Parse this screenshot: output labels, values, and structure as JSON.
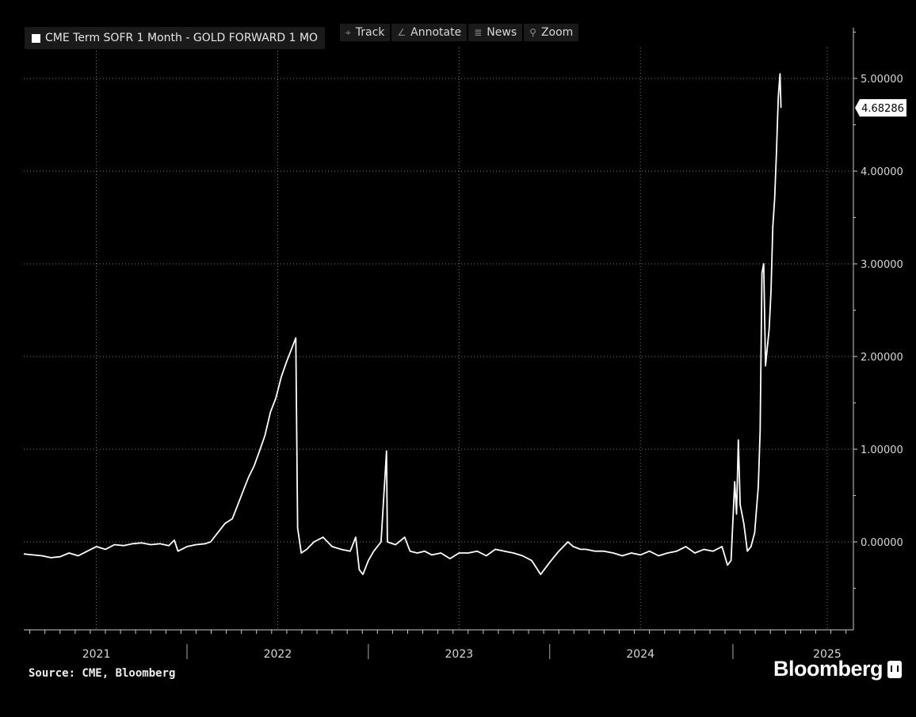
{
  "legend": {
    "label": "CME Term SOFR 1 Month - GOLD FORWARD 1 MO"
  },
  "toolbar": [
    {
      "icon": "track-icon",
      "glyph": "⌖",
      "label": "Track"
    },
    {
      "icon": "annotate-icon",
      "glyph": "∠",
      "label": "Annotate"
    },
    {
      "icon": "news-icon",
      "glyph": "≣",
      "label": "News"
    },
    {
      "icon": "zoom-icon",
      "glyph": "⚲",
      "label": "Zoom"
    }
  ],
  "source": "Source: CME, Bloomberg",
  "brand": "Bloomberg",
  "colors": {
    "background": "#000000",
    "line": "#ffffff",
    "axis": "#cccccc",
    "label_bg": "#ffffff"
  },
  "chart_data": {
    "type": "line",
    "title": "CME Term SOFR 1 Month - GOLD FORWARD 1 MO",
    "xlabel": "",
    "ylabel": "",
    "ylim": [
      -0.95,
      5.5
    ],
    "xlim": [
      2020.55,
      2025.12
    ],
    "y_ticks": [
      {
        "value": 0,
        "label": "0.00000"
      },
      {
        "value": 1,
        "label": "1.00000"
      },
      {
        "value": 2,
        "label": "2.00000"
      },
      {
        "value": 3,
        "label": "3.00000"
      },
      {
        "value": 4,
        "label": "4.00000"
      },
      {
        "value": 5,
        "label": "5.00000"
      }
    ],
    "x_tick_labels": [
      {
        "value": 2020.95,
        "label": "2021"
      },
      {
        "value": 2021.95,
        "label": "2022"
      },
      {
        "value": 2022.95,
        "label": "2023"
      },
      {
        "value": 2023.95,
        "label": "2024"
      },
      {
        "value": 2024.98,
        "label": "2025"
      }
    ],
    "year_separators": [
      2021.45,
      2022.45,
      2023.45,
      2024.46
    ],
    "last_value": {
      "value": 4.68286,
      "label": "4.68286"
    },
    "grid": true,
    "series": [
      {
        "values": [
          [
            2020.55,
            -0.13
          ],
          [
            2020.6,
            -0.14
          ],
          [
            2020.65,
            -0.15
          ],
          [
            2020.7,
            -0.17
          ],
          [
            2020.75,
            -0.16
          ],
          [
            2020.8,
            -0.12
          ],
          [
            2020.85,
            -0.15
          ],
          [
            2020.9,
            -0.1
          ],
          [
            2020.95,
            -0.05
          ],
          [
            2021.0,
            -0.08
          ],
          [
            2021.05,
            -0.03
          ],
          [
            2021.1,
            -0.04
          ],
          [
            2021.15,
            -0.02
          ],
          [
            2021.2,
            -0.01
          ],
          [
            2021.25,
            -0.03
          ],
          [
            2021.3,
            -0.02
          ],
          [
            2021.35,
            -0.04
          ],
          [
            2021.38,
            0.02
          ],
          [
            2021.4,
            -0.1
          ],
          [
            2021.45,
            -0.05
          ],
          [
            2021.5,
            -0.03
          ],
          [
            2021.55,
            -0.02
          ],
          [
            2021.58,
            0.0
          ],
          [
            2021.62,
            0.1
          ],
          [
            2021.66,
            0.2
          ],
          [
            2021.7,
            0.25
          ],
          [
            2021.73,
            0.4
          ],
          [
            2021.76,
            0.55
          ],
          [
            2021.79,
            0.7
          ],
          [
            2021.82,
            0.82
          ],
          [
            2021.85,
            0.98
          ],
          [
            2021.88,
            1.15
          ],
          [
            2021.91,
            1.4
          ],
          [
            2021.94,
            1.55
          ],
          [
            2021.97,
            1.78
          ],
          [
            2022.0,
            1.95
          ],
          [
            2022.02,
            2.05
          ],
          [
            2022.04,
            2.15
          ],
          [
            2022.05,
            2.2
          ],
          [
            2022.06,
            0.15
          ],
          [
            2022.08,
            -0.12
          ],
          [
            2022.11,
            -0.08
          ],
          [
            2022.15,
            0.0
          ],
          [
            2022.2,
            0.05
          ],
          [
            2022.25,
            -0.05
          ],
          [
            2022.3,
            -0.08
          ],
          [
            2022.35,
            -0.1
          ],
          [
            2022.38,
            0.05
          ],
          [
            2022.4,
            -0.3
          ],
          [
            2022.42,
            -0.35
          ],
          [
            2022.45,
            -0.2
          ],
          [
            2022.48,
            -0.1
          ],
          [
            2022.52,
            0.0
          ],
          [
            2022.55,
            0.98
          ],
          [
            2022.555,
            0.0
          ],
          [
            2022.6,
            -0.03
          ],
          [
            2022.65,
            0.05
          ],
          [
            2022.68,
            -0.1
          ],
          [
            2022.72,
            -0.12
          ],
          [
            2022.76,
            -0.1
          ],
          [
            2022.8,
            -0.14
          ],
          [
            2022.85,
            -0.12
          ],
          [
            2022.9,
            -0.18
          ],
          [
            2022.95,
            -0.12
          ],
          [
            2023.0,
            -0.12
          ],
          [
            2023.05,
            -0.1
          ],
          [
            2023.1,
            -0.15
          ],
          [
            2023.15,
            -0.08
          ],
          [
            2023.2,
            -0.1
          ],
          [
            2023.25,
            -0.12
          ],
          [
            2023.3,
            -0.15
          ],
          [
            2023.35,
            -0.2
          ],
          [
            2023.4,
            -0.35
          ],
          [
            2023.45,
            -0.22
          ],
          [
            2023.5,
            -0.1
          ],
          [
            2023.55,
            0.0
          ],
          [
            2023.58,
            -0.05
          ],
          [
            2023.62,
            -0.08
          ],
          [
            2023.65,
            -0.08
          ],
          [
            2023.7,
            -0.1
          ],
          [
            2023.75,
            -0.1
          ],
          [
            2023.8,
            -0.12
          ],
          [
            2023.85,
            -0.15
          ],
          [
            2023.9,
            -0.12
          ],
          [
            2023.95,
            -0.14
          ],
          [
            2024.0,
            -0.1
          ],
          [
            2024.05,
            -0.15
          ],
          [
            2024.1,
            -0.12
          ],
          [
            2024.15,
            -0.1
          ],
          [
            2024.2,
            -0.05
          ],
          [
            2024.25,
            -0.12
          ],
          [
            2024.3,
            -0.08
          ],
          [
            2024.35,
            -0.1
          ],
          [
            2024.4,
            -0.05
          ],
          [
            2024.43,
            -0.25
          ],
          [
            2024.45,
            -0.2
          ],
          [
            2024.47,
            0.65
          ],
          [
            2024.48,
            0.3
          ],
          [
            2024.49,
            1.1
          ],
          [
            2024.5,
            0.4
          ],
          [
            2024.52,
            0.2
          ],
          [
            2024.54,
            -0.1
          ],
          [
            2024.56,
            -0.05
          ],
          [
            2024.58,
            0.1
          ],
          [
            2024.6,
            0.6
          ],
          [
            2024.61,
            1.2
          ],
          [
            2024.62,
            2.9
          ],
          [
            2024.63,
            3.0
          ],
          [
            2024.64,
            1.9
          ],
          [
            2024.65,
            2.1
          ],
          [
            2024.66,
            2.3
          ],
          [
            2024.67,
            2.7
          ],
          [
            2024.68,
            3.4
          ],
          [
            2024.69,
            3.7
          ],
          [
            2024.7,
            4.2
          ],
          [
            2024.71,
            4.8
          ],
          [
            2024.72,
            5.05
          ],
          [
            2024.725,
            4.68286
          ]
        ]
      }
    ]
  }
}
